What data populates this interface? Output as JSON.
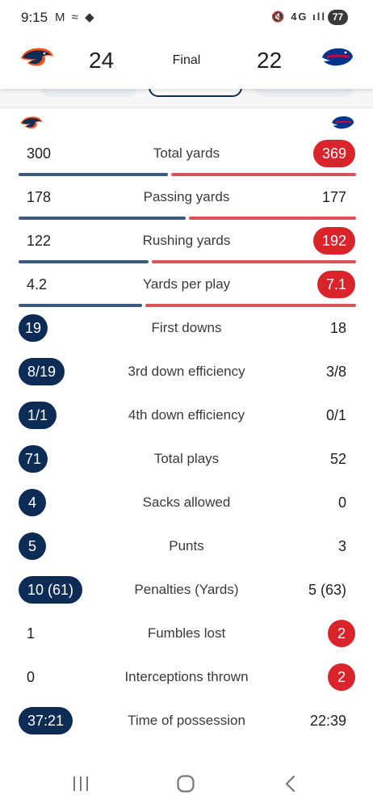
{
  "status_bar": {
    "time": "9:15",
    "left_icons": "M ≈ ◆",
    "right_icons": "🔇 4G ıll",
    "battery": "77"
  },
  "game": {
    "home_team_score": "24",
    "away_team_score": "22",
    "status": "Final",
    "home_color": "#0c2c56",
    "away_color": "#d9242b"
  },
  "stats": [
    {
      "label": "Total yards",
      "home": "300",
      "away": "369",
      "highlight": "away",
      "home_share": 0.448
    },
    {
      "label": "Passing yards",
      "home": "178",
      "away": "177",
      "highlight": "none",
      "home_share": 0.501
    },
    {
      "label": "Rushing yards",
      "home": "122",
      "away": "192",
      "highlight": "away",
      "home_share": 0.389
    },
    {
      "label": "Yards per play",
      "home": "4.2",
      "away": "7.1",
      "highlight": "away",
      "home_share": 0.372
    },
    {
      "label": "First downs",
      "home": "19",
      "away": "18",
      "highlight": "home"
    },
    {
      "label": "3rd down efficiency",
      "home": "8/19",
      "away": "3/8",
      "highlight": "home"
    },
    {
      "label": "4th down efficiency",
      "home": "1/1",
      "away": "0/1",
      "highlight": "home"
    },
    {
      "label": "Total plays",
      "home": "71",
      "away": "52",
      "highlight": "home"
    },
    {
      "label": "Sacks allowed",
      "home": "4",
      "away": "0",
      "highlight": "home"
    },
    {
      "label": "Punts",
      "home": "5",
      "away": "3",
      "highlight": "home"
    },
    {
      "label": "Penalties (Yards)",
      "home": "10 (61)",
      "away": "5 (63)",
      "highlight": "home"
    },
    {
      "label": "Fumbles lost",
      "home": "1",
      "away": "2",
      "highlight": "away"
    },
    {
      "label": "Interceptions thrown",
      "home": "0",
      "away": "2",
      "highlight": "away"
    },
    {
      "label": "Time of possession",
      "home": "37:21",
      "away": "22:39",
      "highlight": "home"
    }
  ],
  "nav": {
    "recent_icon": "recent-apps-icon",
    "home_icon": "home-icon",
    "back_icon": "back-icon"
  }
}
